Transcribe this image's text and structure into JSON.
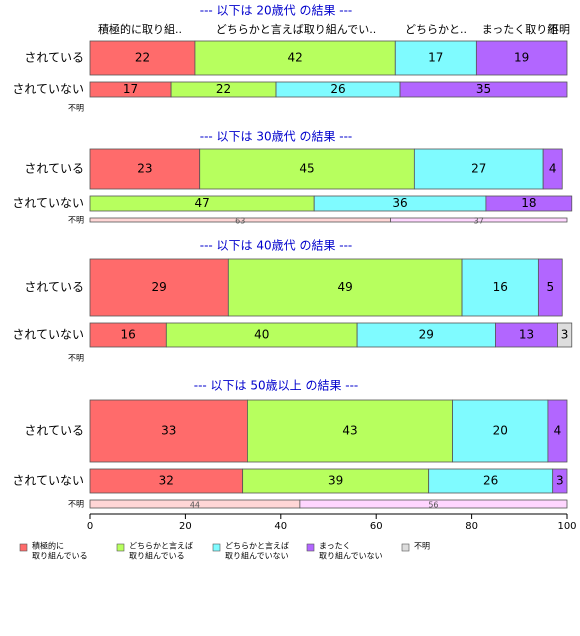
{
  "chart_data": {
    "type": "bar",
    "orientation": "horizontal",
    "stacked": true,
    "xlim": [
      0,
      100
    ],
    "x_ticks": [
      0,
      20,
      40,
      60,
      80,
      100
    ],
    "row_labels": {
      "done": "されている",
      "notdone": "されていない",
      "unknown": "不明"
    },
    "top_column_headers": [
      "積極的に取り組..",
      "どちらかと言えば取り組んでい..",
      "どちらかと..",
      "まったく取り組",
      "不明"
    ],
    "colors": [
      "#ff6b6b",
      "#b7ff5e",
      "#7ffbff",
      "#b266ff",
      "#dddddd"
    ],
    "unknown_colors": [
      "#ffd6d6",
      "#ffd6ff"
    ],
    "legend": [
      "積極的に\n取り組んでいる",
      "どちらかと言えば\n取り組んでいる",
      "どちらかと言えば\n取り組んでいない",
      "まったく\n取り組んでいない",
      "不明"
    ],
    "groups": [
      {
        "title": "--- 以下は 20歳代 の結果 ---",
        "bars": [
          {
            "row": "されている",
            "values": [
              22,
              42,
              17,
              19,
              0
            ]
          },
          {
            "row": "されていない",
            "values": [
              17,
              22,
              26,
              35,
              0
            ]
          },
          {
            "row": "不明",
            "values": []
          }
        ]
      },
      {
        "title": "--- 以下は 30歳代 の結果 ---",
        "bars": [
          {
            "row": "されている",
            "values": [
              23,
              45,
              27,
              4,
              0
            ]
          },
          {
            "row": "されていない",
            "values": [
              0,
              47,
              36,
              18,
              0
            ]
          },
          {
            "row": "不明",
            "values": [
              63,
              0,
              37,
              0,
              0
            ]
          }
        ]
      },
      {
        "title": "--- 以下は 40歳代 の結果 ---",
        "bars": [
          {
            "row": "されている",
            "values": [
              29,
              49,
              16,
              5,
              0
            ]
          },
          {
            "row": "されていない",
            "values": [
              16,
              40,
              29,
              13,
              3
            ]
          },
          {
            "row": "不明",
            "values": []
          }
        ]
      },
      {
        "title": "--- 以下は 50歳以上 の結果 ---",
        "bars": [
          {
            "row": "されている",
            "values": [
              33,
              43,
              20,
              4,
              0
            ]
          },
          {
            "row": "されていない",
            "values": [
              32,
              39,
              26,
              3,
              0
            ]
          },
          {
            "row": "不明",
            "values": [
              44,
              0,
              0,
              56,
              0
            ]
          }
        ]
      }
    ]
  }
}
